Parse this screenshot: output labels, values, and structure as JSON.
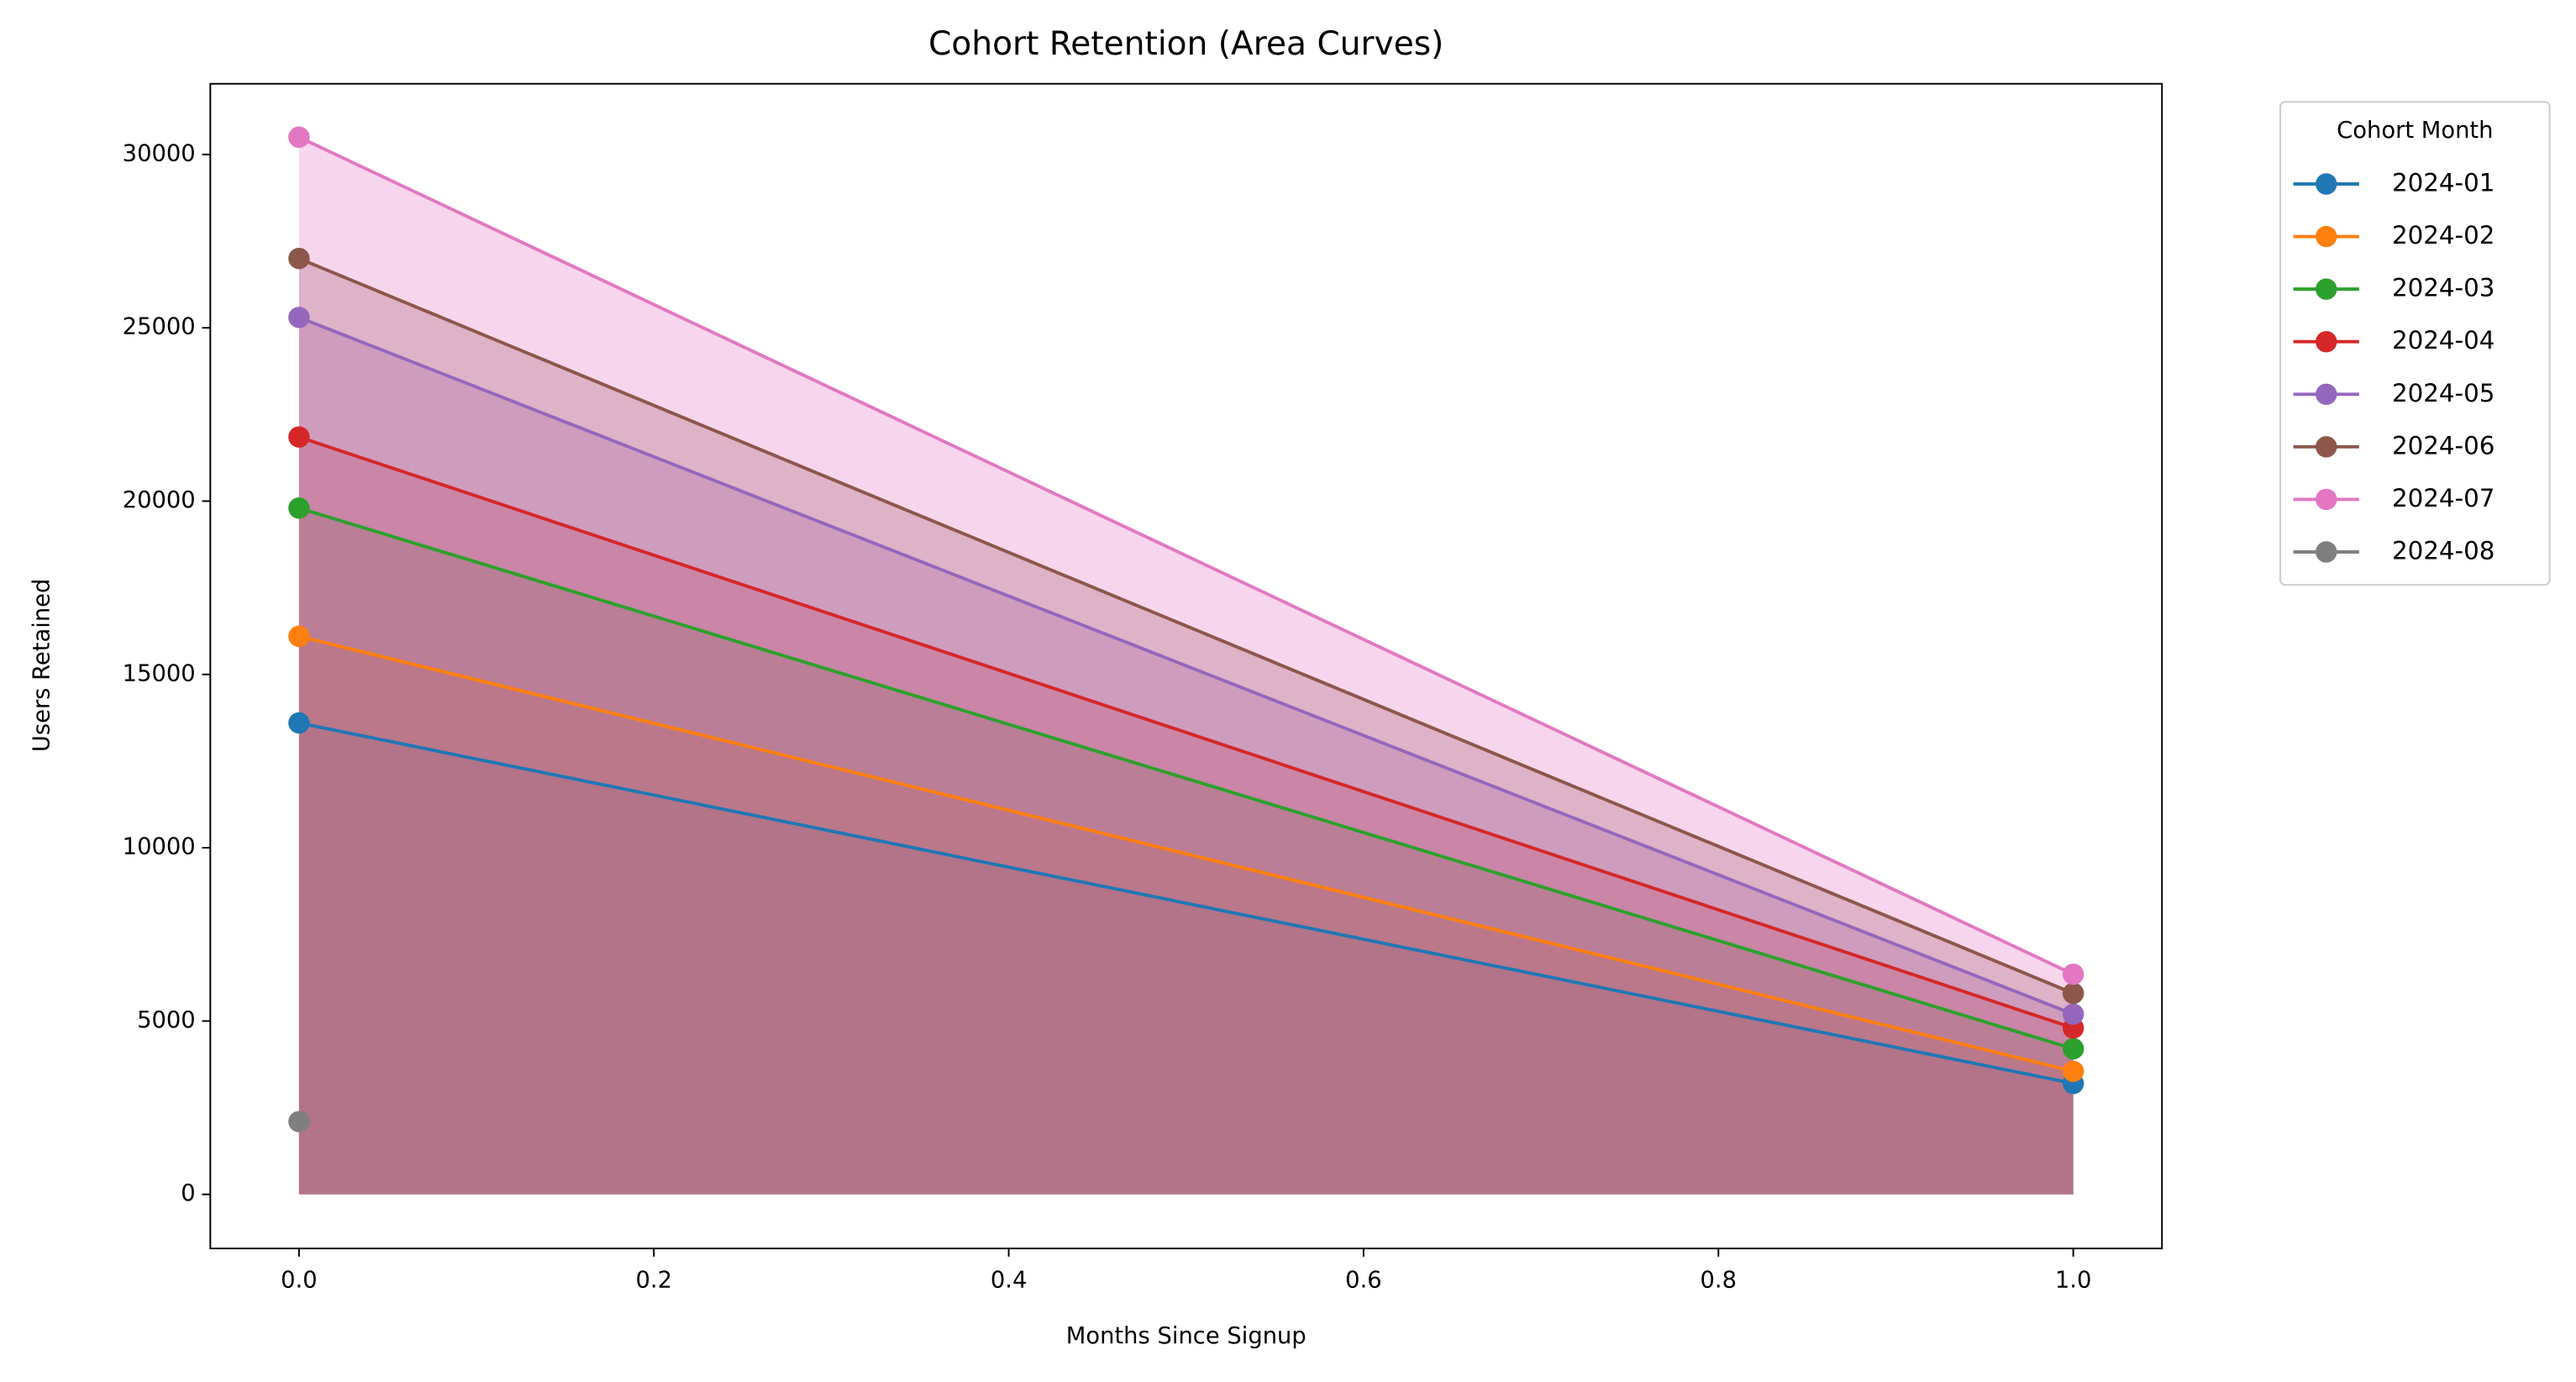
{
  "chart_data": {
    "type": "area-line",
    "title": "Cohort Retention (Area Curves)",
    "x_label": "Months Since Signup",
    "y_label": "Users Retained",
    "x": [
      0,
      1
    ],
    "series": [
      {
        "name": "2024-01",
        "color": "#1f77b4",
        "values": [
          13600,
          3200
        ]
      },
      {
        "name": "2024-02",
        "color": "#ff7f0e",
        "values": [
          16100,
          3550
        ]
      },
      {
        "name": "2024-03",
        "color": "#2ca02c",
        "values": [
          19800,
          4200
        ]
      },
      {
        "name": "2024-04",
        "color": "#d62728",
        "values": [
          21850,
          4800
        ]
      },
      {
        "name": "2024-05",
        "color": "#9467bd",
        "values": [
          25300,
          5200
        ]
      },
      {
        "name": "2024-06",
        "color": "#8c564b",
        "values": [
          27000,
          5800
        ]
      },
      {
        "name": "2024-07",
        "color": "#e377c2",
        "values": [
          30500,
          6350
        ]
      },
      {
        "name": "2024-08",
        "color": "#7f7f7f",
        "values": [
          2100,
          null
        ]
      }
    ],
    "legend_title": "Cohort Month",
    "legend": "outside upper right",
    "xlim": [
      -0.05,
      1.05
    ],
    "ylim": [
      -1560,
      32040
    ],
    "xticks": [
      {
        "value": 0,
        "label": "0.0"
      },
      0.2,
      0.4,
      0.6,
      0.8,
      {
        "value": 1,
        "label": "1.0"
      }
    ],
    "yticks": [
      0,
      5000,
      10000,
      15000,
      20000,
      25000,
      30000
    ],
    "grid": false,
    "fill_alpha": 0.3
  }
}
